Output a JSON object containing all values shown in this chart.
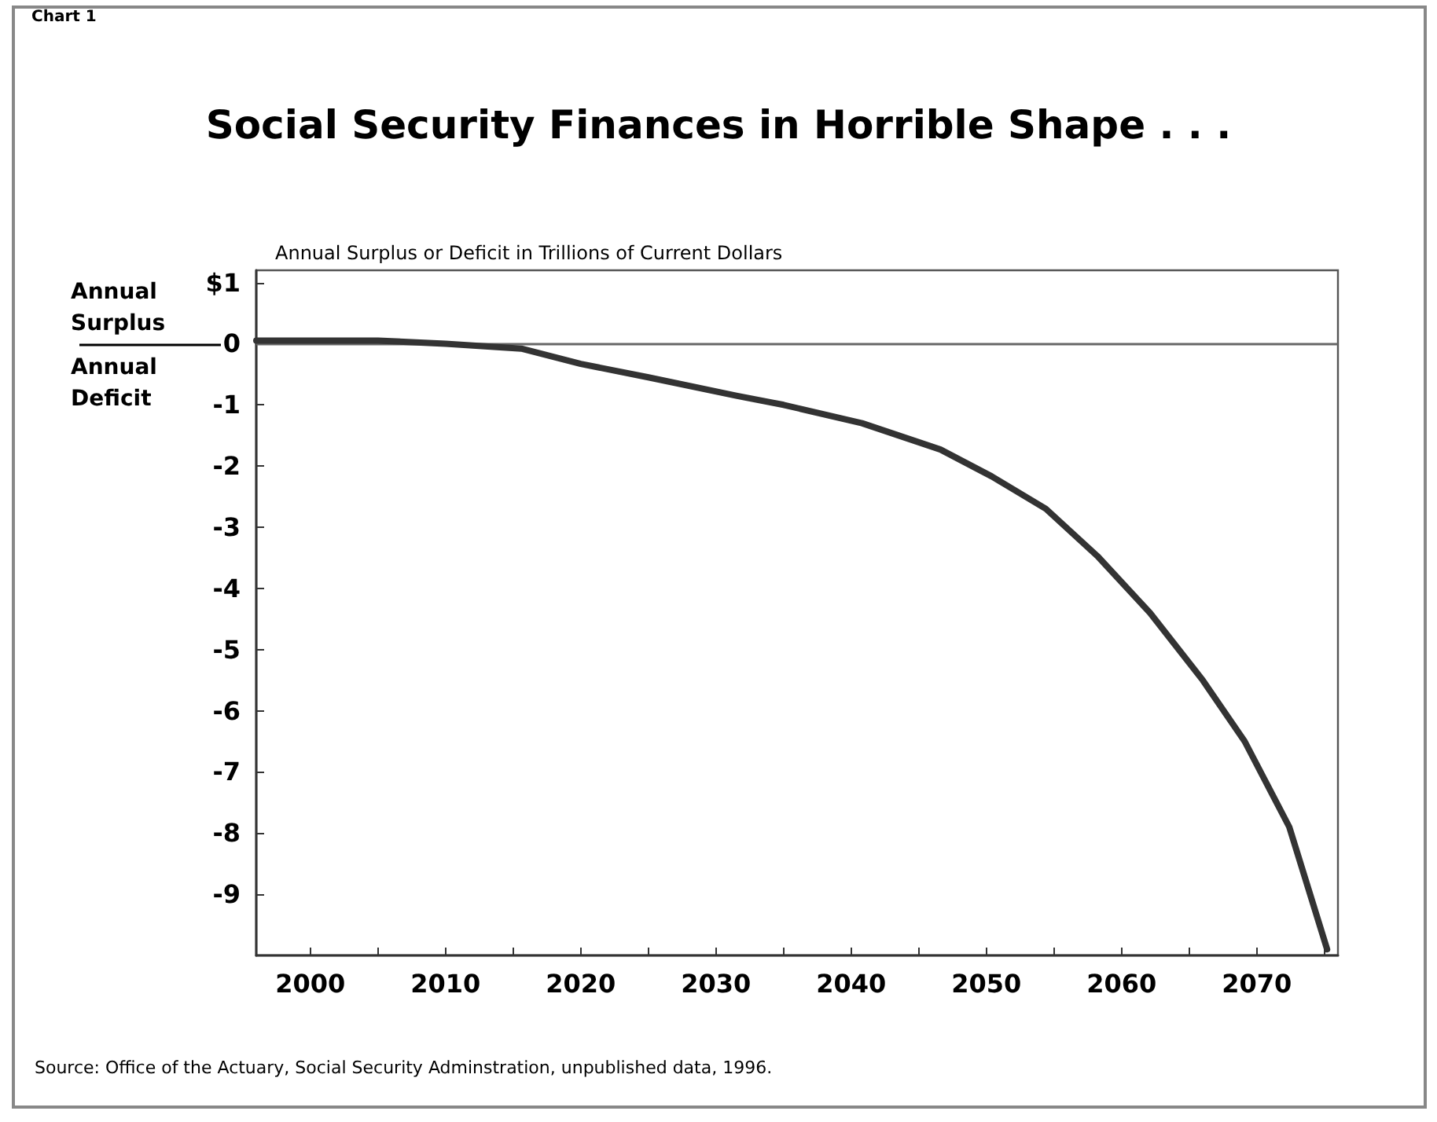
{
  "chart_data": {
    "type": "line",
    "title": "Social Security Finances in Horrible Shape . . .",
    "subtitle": "Annual Surplus or Deficit in Trillions of Current Dollars",
    "annotations": [
      "Chart 1",
      "Annual Surplus",
      "Annual Deficit",
      "Source: Office of the Actuary, Social Security Adminstration, unpublished data, 1996."
    ],
    "series": [
      {
        "color": "#333333",
        "x": [
          1996,
          2005,
          2010,
          2015.6,
          2020,
          2025,
          2031.5,
          2035,
          2040.8,
          2046.6,
          2050.4,
          2054.4,
          2058.2,
          2062.1,
          2066,
          2069.1,
          2072.4,
          2075.2
        ],
        "values": [
          0.05,
          0.05,
          0,
          -0.08,
          -0.33,
          -0.55,
          -0.85,
          -1.0,
          -1.3,
          -1.73,
          -2.17,
          -2.7,
          -3.47,
          -4.4,
          -5.5,
          -6.5,
          -7.9,
          -9.9
        ]
      }
    ],
    "xlim": [
      1996,
      2076
    ],
    "xticks": [
      2000,
      {
        "value": 2005,
        "label": null
      },
      2010,
      {
        "value": 2015,
        "label": null
      },
      2020,
      {
        "value": 2025,
        "label": null
      },
      2030,
      {
        "value": 2035,
        "label": null
      },
      2040,
      {
        "value": 2045,
        "label": null
      },
      2050,
      {
        "value": 2055,
        "label": null
      },
      2060,
      {
        "value": 2065,
        "label": null
      },
      2070,
      {
        "value": 2075,
        "label": null
      }
    ],
    "ylim": [
      -10,
      1.2
    ],
    "yticks": [
      {
        "value": 1,
        "label": "$1"
      },
      0,
      -1,
      -2,
      -3,
      -4,
      -5,
      -6,
      -7,
      -8,
      -9
    ],
    "ref_lines": [
      {
        "axis": "y",
        "value": 0,
        "color": "#666666"
      }
    ],
    "grid": false,
    "marker": "none",
    "line_style": "solid"
  }
}
